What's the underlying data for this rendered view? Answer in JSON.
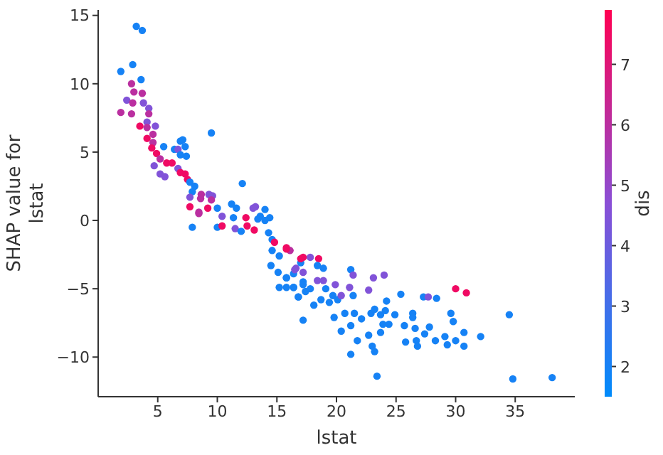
{
  "chart_data": {
    "type": "scatter",
    "xlabel": "lstat",
    "ylabel": "SHAP value for\nlstat",
    "clabel": "dis",
    "xlim": [
      0,
      40
    ],
    "xticks": [
      5,
      10,
      15,
      20,
      25,
      30,
      35
    ],
    "ylim": [
      -12.9,
      15.4
    ],
    "yticks": [
      {
        "value": -10,
        "label": "−10"
      },
      {
        "value": -5,
        "label": "−5"
      },
      0,
      5,
      10,
      15
    ],
    "clim": [
      1.5,
      7.9
    ],
    "cticks": [
      2,
      3,
      4,
      5,
      6,
      7
    ],
    "x": [
      3.2,
      3.7,
      1.9,
      2.9,
      3.6,
      2.8,
      3.0,
      2.4,
      1.9,
      2.9,
      3.7,
      3.8,
      2.8,
      4.25,
      4.25,
      4.1,
      3.5,
      4.1,
      4.8,
      4.1,
      4.6,
      4.6,
      4.5,
      4.9,
      4.7,
      5.2,
      5.5,
      5.75,
      6.2,
      6.4,
      6.7,
      6.9,
      7.1,
      7.3,
      6.9,
      7.4,
      6.7,
      5.2,
      5.6,
      6.9,
      7.3,
      7.5,
      7.7,
      8.1,
      7.9,
      9.5,
      7.7,
      7.7,
      8.6,
      8.65,
      9.3,
      9.6,
      9.5,
      8.45,
      9.2,
      10.0,
      10.4,
      12.1,
      11.2,
      11.6,
      13.2,
      14.0,
      14.4,
      12.4,
      13.6,
      7.9,
      8.45,
      10.0,
      10.4,
      11.35,
      11.5,
      12.0,
      12.5,
      13.1,
      13.0,
      13.4,
      14.0,
      14.3,
      14.6,
      14.8,
      14.6,
      15.2,
      15.8,
      16.1,
      14.5,
      15.1,
      15.2,
      15.8,
      15.8,
      16.4,
      16.4,
      16.6,
      17.2,
      16.8,
      17.2,
      17.2,
      17.0,
      15.8,
      17.0,
      17.8,
      18.5,
      18.4,
      18.9,
      16.5,
      17.2,
      18.4,
      18.9,
      15.8,
      16.4,
      17.2,
      17.4,
      17.8,
      16.8,
      18.1,
      18.7,
      19.1,
      19.4,
      19.9,
      19.7,
      20.1,
      20.4,
      19.8,
      20.7,
      20.4,
      21.2,
      21.2,
      21.4,
      21.1,
      21.4,
      21.5,
      21.75,
      21.2,
      22.1,
      22.7,
      23.1,
      24.0,
      22.9,
      23.2,
      22.7,
      23.0,
      23.2,
      23.4,
      23.7,
      23.7,
      23.9,
      24.2,
      24.1,
      24.4,
      24.9,
      25.4,
      25.7,
      25.8,
      26.4,
      26.4,
      26.6,
      26.7,
      26.8,
      27.3,
      27.7,
      28.4,
      27.4,
      27.8,
      28.3,
      29.1,
      29.3,
      29.6,
      29.8,
      30.0,
      30.9,
      30.0,
      30.7,
      30.7,
      32.1,
      34.5,
      34.8,
      38.1
    ],
    "values": [
      14.2,
      13.9,
      10.9,
      11.4,
      10.3,
      10.0,
      9.4,
      8.8,
      7.9,
      8.6,
      9.3,
      8.6,
      7.8,
      8.2,
      7.8,
      7.2,
      6.9,
      6.8,
      6.9,
      6.0,
      6.3,
      5.7,
      5.3,
      4.9,
      4.0,
      4.5,
      5.4,
      4.2,
      4.2,
      5.2,
      5.2,
      5.8,
      5.9,
      5.4,
      4.8,
      4.7,
      3.8,
      3.4,
      3.2,
      3.5,
      3.4,
      3.0,
      2.8,
      2.5,
      2.1,
      6.4,
      1.7,
      1.0,
      1.6,
      1.9,
      1.9,
      1.8,
      1.5,
      0.6,
      0.9,
      0.9,
      0.3,
      2.7,
      1.2,
      0.9,
      1.0,
      0.8,
      0.2,
      0.2,
      0.3,
      -0.5,
      0.5,
      -0.5,
      -0.4,
      0.2,
      -0.6,
      -0.8,
      -0.4,
      -0.7,
      0.9,
      0.1,
      0.0,
      -0.9,
      -1.4,
      -1.6,
      -2.2,
      -2.6,
      -2.0,
      -2.2,
      -3.3,
      -3.8,
      -4.9,
      -4.2,
      -4.9,
      -4.9,
      -3.9,
      -3.5,
      -7.3,
      -5.6,
      -2.7,
      -4.5,
      -3.1,
      -2.1,
      -2.8,
      -2.7,
      -2.8,
      -3.3,
      -3.5,
      -3.6,
      -3.8,
      -4.4,
      -4.4,
      -4.2,
      -4.9,
      -4.7,
      -5.2,
      -5.0,
      -5.6,
      -6.2,
      -5.8,
      -5.0,
      -6.0,
      -4.7,
      -5.5,
      -5.8,
      -5.5,
      -7.1,
      -6.8,
      -8.1,
      -7.7,
      -3.6,
      -4.0,
      -4.9,
      -5.5,
      -6.8,
      -8.8,
      -9.8,
      -7.2,
      -5.1,
      -4.2,
      -4.0,
      -6.8,
      -6.5,
      -8.4,
      -9.2,
      -9.6,
      -11.4,
      -6.9,
      -8.2,
      -7.6,
      -5.9,
      -6.6,
      -7.6,
      -6.9,
      -5.4,
      -7.7,
      -8.9,
      -6.8,
      -7.1,
      -7.9,
      -8.8,
      -9.2,
      -5.6,
      -5.6,
      -5.7,
      -8.3,
      -7.8,
      -8.8,
      -8.5,
      -9.1,
      -6.8,
      -7.4,
      -5.0,
      -5.3,
      -8.8,
      -8.2,
      -9.2,
      -8.5,
      -6.9,
      -11.6,
      -11.5
    ],
    "cvalues": [
      2,
      2,
      2,
      2,
      2,
      6,
      6,
      4.5,
      6,
      6,
      6,
      4.5,
      6,
      4.5,
      6,
      4.5,
      7.5,
      6,
      4.5,
      7.5,
      6,
      6,
      7.5,
      7.5,
      4.5,
      6,
      2,
      7.5,
      7.5,
      2,
      4.5,
      2,
      2,
      2,
      2,
      2,
      4.5,
      4.5,
      4.5,
      7.5,
      7.5,
      7.5,
      2,
      2,
      2,
      2,
      4.5,
      7.5,
      6,
      6,
      4.5,
      4.5,
      6,
      6,
      7.5,
      2,
      4.5,
      2,
      2,
      2,
      4.5,
      2,
      2,
      7.5,
      2,
      2,
      6,
      2,
      7.5,
      2,
      4.5,
      2,
      7.5,
      7.5,
      4.5,
      2,
      2,
      2,
      2,
      7.5,
      2,
      2,
      7.5,
      6,
      2,
      2,
      2,
      2,
      2,
      2,
      2,
      4.5,
      2,
      2,
      7.5,
      2,
      2,
      7.5,
      7.5,
      4.5,
      7.5,
      2,
      2,
      4.5,
      4.5,
      4.5,
      4.5,
      2,
      2,
      2,
      2,
      2,
      2,
      2,
      2,
      2,
      2,
      4.5,
      2,
      2,
      4.5,
      2,
      2,
      2,
      2,
      2,
      4.5,
      4.5,
      2,
      2,
      2,
      2,
      2,
      4.5,
      4.5,
      4.5,
      2,
      2,
      2,
      2,
      2,
      2,
      2,
      2,
      2,
      2,
      2,
      2,
      2,
      2,
      2,
      2,
      2,
      2,
      2,
      2,
      2,
      2,
      4.5,
      2,
      2,
      2,
      2,
      2,
      2,
      2,
      2,
      7.5,
      7.5,
      2,
      2,
      2,
      2,
      2,
      2,
      2
    ]
  }
}
